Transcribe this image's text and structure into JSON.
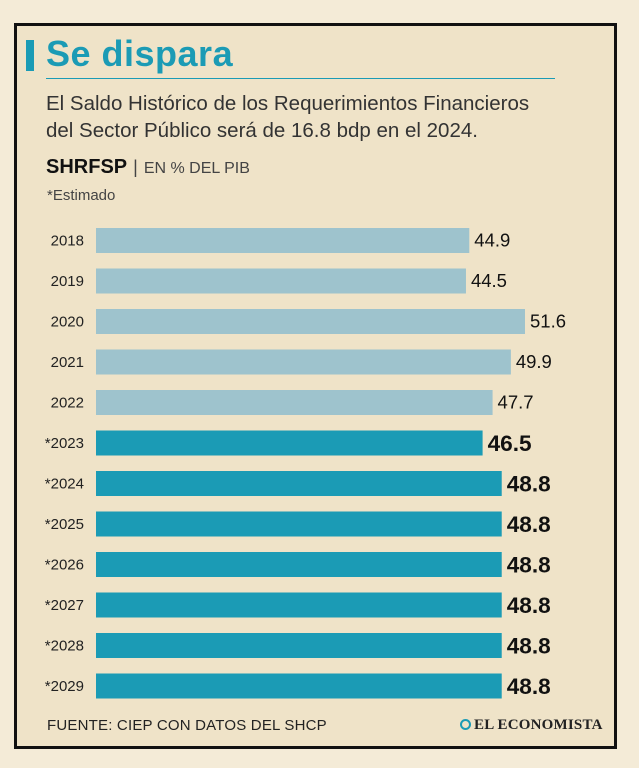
{
  "header": {
    "title": "Se dispara",
    "subtitle_line1": "El Saldo Histórico de los Requerimientos Financieros",
    "subtitle_line2": "del Sector Público será de 16.8 bdp en el 2024.",
    "metric_label": "SHRFSP",
    "metric_separator": "|",
    "metric_unit": "EN % DEL PIB",
    "note": "*Estimado"
  },
  "footer": {
    "source": "FUENTE: CIEP CON DATOS DEL  SHCP",
    "brand": "EL ECONOMISTA"
  },
  "colors": {
    "historical": "#9ec3cd",
    "estimated": "#1b9bb5",
    "accent": "#1b9bb5",
    "background": "#efe3c8"
  },
  "chart_data": {
    "type": "bar",
    "orientation": "horizontal",
    "title": "SHRFSP",
    "xlabel": "EN % DEL PIB",
    "ylabel": "",
    "categories": [
      "2018",
      "2019",
      "2020",
      "2021",
      "2022",
      "*2023",
      "*2024",
      "*2025",
      "*2026",
      "*2027",
      "*2028",
      "*2029"
    ],
    "values": [
      44.9,
      44.5,
      51.6,
      49.9,
      47.7,
      46.5,
      48.8,
      48.8,
      48.8,
      48.8,
      48.8,
      48.8
    ],
    "estimated": [
      false,
      false,
      false,
      false,
      false,
      true,
      true,
      true,
      true,
      true,
      true,
      true
    ],
    "xlim": [
      0,
      51.6
    ],
    "grid": false,
    "legend": "none"
  }
}
